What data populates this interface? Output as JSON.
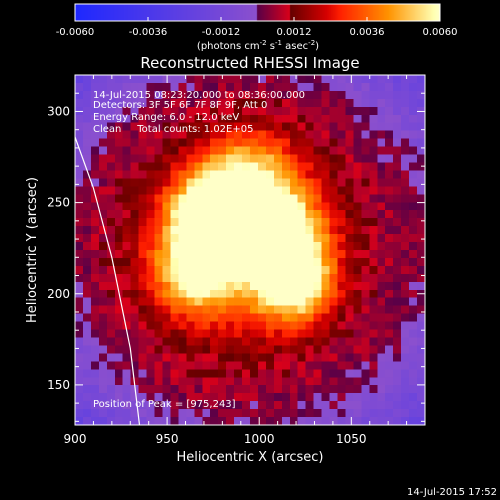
{
  "chart_data": {
    "type": "heatmap",
    "title": "Reconstructed RHESSI Image",
    "xlabel": "Heliocentric X (arcsec)",
    "ylabel": "Heliocentric Y (arcsec)",
    "xlim": [
      900,
      1090
    ],
    "ylim": [
      128,
      320
    ],
    "x_ticks": [
      900,
      950,
      1000,
      1050
    ],
    "y_ticks": [
      150,
      200,
      250,
      300
    ],
    "colorbar": {
      "range": [
        -0.006,
        0.006
      ],
      "tick_labels": [
        "-0.0060",
        "-0.0036",
        "-0.0012",
        "0.0012",
        "0.0036",
        "0.0060"
      ],
      "label": "(photons cm-2 s-1 asec-2)",
      "label_parts": {
        "a": "(photons cm",
        "b": "-2",
        "c": " s",
        "d": "-1",
        "e": " asec",
        "f": "-2",
        "g": ")"
      }
    },
    "annotations": [
      "14-Jul-2015 08:23:20.000 to 08:36:00.000",
      "Detectors: 3F 5F 6F 7F 8F 9F, Att 0",
      "Energy Range: 6.0 - 12.0 keV",
      "Clean     Total counts: 1.02E+05"
    ],
    "peak_label": "Position of Peak = [975,243]",
    "peak": [
      975,
      243
    ],
    "sources": [
      {
        "x": 974,
        "y": 243,
        "amp": 0.006,
        "sigma": 15
      },
      {
        "x": 1012,
        "y": 232,
        "amp": 0.0052,
        "sigma": 15
      },
      {
        "x": 1020,
        "y": 205,
        "amp": 0.0048,
        "sigma": 14
      },
      {
        "x": 965,
        "y": 212,
        "amp": 0.004,
        "sigma": 15
      },
      {
        "x": 995,
        "y": 265,
        "amp": 0.0036,
        "sigma": 18
      },
      {
        "x": 990,
        "y": 225,
        "amp": 0.0045,
        "sigma": 40
      }
    ],
    "limb": [
      [
        900,
        286
      ],
      [
        910,
        258
      ],
      [
        920,
        220
      ],
      [
        930,
        170
      ],
      [
        935,
        128
      ]
    ],
    "timestamp": "14-Jul-2015 17:52"
  }
}
